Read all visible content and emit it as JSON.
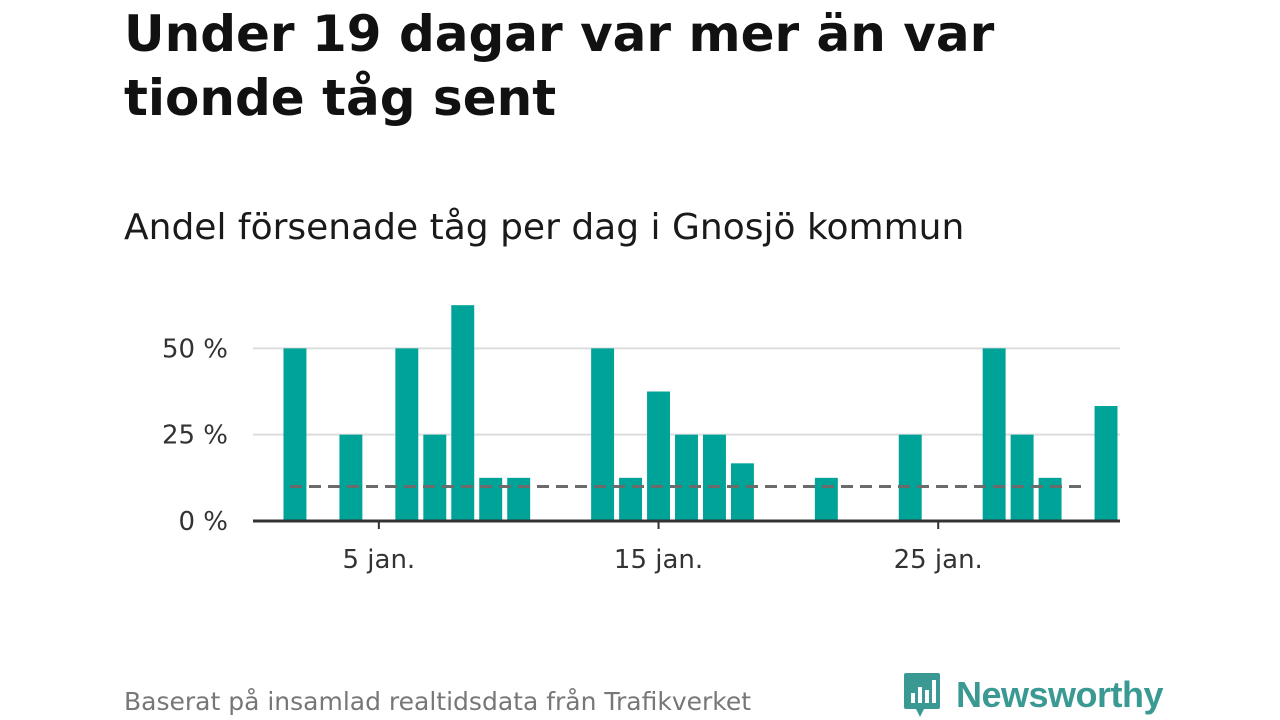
{
  "title": "Under 19 dagar var mer än var tionde tåg sent",
  "subtitle": "Andel försenade tåg per dag i Gnosjö kommun",
  "source": "Baserat på insamlad realtidsdata från Trafikverket",
  "brand": {
    "name": "Newsworthy",
    "color": "#3a9a93"
  },
  "colors": {
    "bar": "#00a398",
    "reference_line": "#6b6b6b",
    "grid": "#dddddd",
    "axis": "#333333"
  },
  "chart_data": {
    "type": "bar",
    "x": [
      1,
      2,
      3,
      4,
      5,
      6,
      7,
      8,
      9,
      10,
      11,
      12,
      13,
      14,
      15,
      16,
      17,
      18,
      19,
      20,
      21,
      22,
      23,
      24,
      25,
      26,
      27,
      28,
      29,
      30,
      31
    ],
    "values": [
      0,
      50,
      0,
      25,
      0,
      50,
      25,
      62.5,
      12.5,
      12.5,
      0,
      0,
      50,
      12.5,
      37.5,
      25,
      25,
      16.7,
      0,
      0,
      12.5,
      0,
      0,
      25,
      0,
      0,
      50,
      25,
      12.5,
      0,
      33.3
    ],
    "unit": "%",
    "y_ticks": [
      {
        "value": 0,
        "label": "0 %"
      },
      {
        "value": 25,
        "label": "25 %"
      },
      {
        "value": 50,
        "label": "50 %"
      }
    ],
    "x_ticks": [
      {
        "value": 5,
        "label": "5 jan."
      },
      {
        "value": 15,
        "label": "15 jan."
      },
      {
        "value": 25,
        "label": "25 jan."
      }
    ],
    "reference_line": 10,
    "ylim": [
      0,
      64
    ],
    "xlim": [
      0.5,
      31.5
    ],
    "grid": true
  }
}
